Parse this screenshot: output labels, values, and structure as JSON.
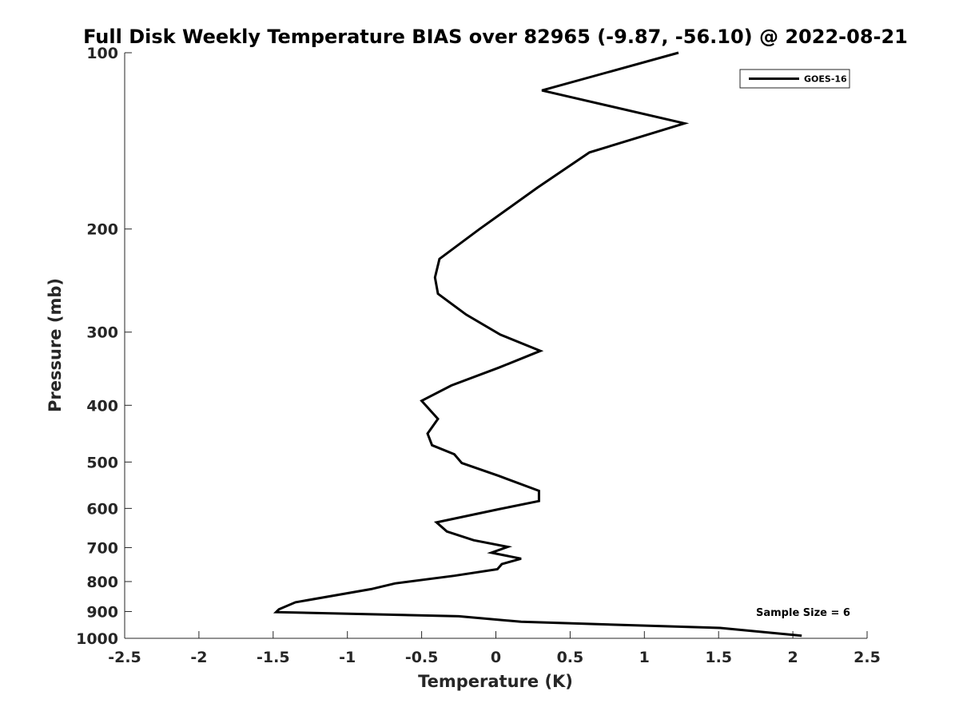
{
  "chart_data": {
    "type": "line",
    "title": "Full Disk Weekly Temperature BIAS over 82965 (-9.87, -56.10) @ 2022-08-21",
    "xlabel": "Temperature (K)",
    "ylabel": "Pressure (mb)",
    "xlim": [
      -2.5,
      2.5
    ],
    "ylim": [
      100,
      1000
    ],
    "y_scale": "log",
    "y_reversed": true,
    "x_ticks": [
      -2.5,
      -2,
      -1.5,
      -1,
      -0.5,
      0,
      0.5,
      1,
      1.5,
      2,
      2.5
    ],
    "x_tick_labels": [
      "-2.5",
      "-2",
      "-1.5",
      "-1",
      "-0.5",
      "0",
      "0.5",
      "1",
      "1.5",
      "2",
      "2.5"
    ],
    "y_ticks": [
      100,
      200,
      300,
      400,
      500,
      600,
      700,
      800,
      900,
      1000
    ],
    "y_tick_labels": [
      "100",
      "200",
      "300",
      "400",
      "500",
      "600",
      "700",
      "800",
      "900",
      "1000"
    ],
    "legend_position": "top-right",
    "grid": false,
    "annotation": "Sample Size = 6",
    "series": [
      {
        "name": "GOES-16",
        "color": "#000000",
        "x": [
          1.23,
          0.31,
          1.27,
          0.63,
          0.28,
          -0.11,
          -0.38,
          -0.41,
          -0.39,
          -0.2,
          0.03,
          0.3,
          0.02,
          -0.3,
          -0.5,
          -0.39,
          -0.46,
          -0.43,
          -0.28,
          -0.23,
          0.02,
          0.29,
          0.29,
          0.02,
          -0.4,
          -0.33,
          -0.15,
          0.08,
          -0.03,
          0.17,
          0.04,
          0.01,
          -0.28,
          -0.68,
          -0.84,
          -1.35,
          -1.46,
          -1.48,
          -0.25,
          0.17,
          1.51,
          2.06
        ],
        "y": [
          100,
          116,
          132,
          148,
          170,
          200,
          225,
          242,
          258,
          280,
          303,
          323,
          345,
          370,
          393,
          422,
          447,
          468,
          485,
          502,
          528,
          560,
          583,
          602,
          634,
          657,
          680,
          698,
          714,
          731,
          747,
          762,
          782,
          806,
          824,
          868,
          892,
          902,
          917,
          937,
          960,
          990
        ]
      }
    ]
  }
}
